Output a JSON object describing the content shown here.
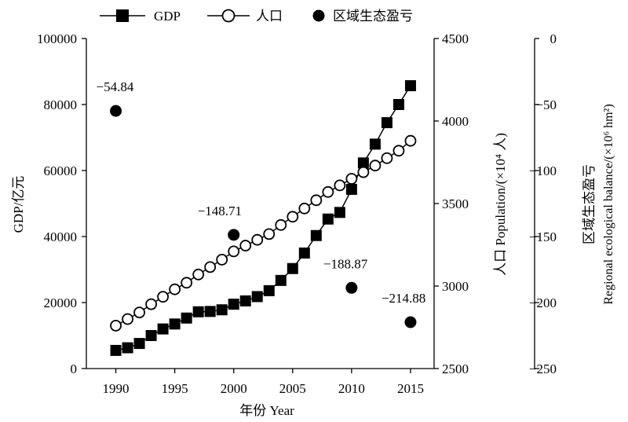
{
  "chart_data": {
    "type": "line",
    "x_axis": {
      "label": "年份 Year",
      "ticks": [
        1990,
        1995,
        2000,
        2005,
        2010,
        2015
      ],
      "range": [
        1987.5,
        2017
      ]
    },
    "y_left": {
      "label": "GDP/亿元",
      "ticks": [
        "0",
        "20000",
        "40000",
        "60000",
        "80000",
        "100000"
      ],
      "range": [
        0,
        100000
      ]
    },
    "y_right": {
      "label": "人口 Population/(×10⁴ 人)",
      "ticks": [
        "2500",
        "3000",
        "3500",
        "4000",
        "4500"
      ],
      "range": [
        2500,
        4500
      ]
    },
    "y_right2": {
      "label_cn": "区域生态盈亏",
      "label_en": "Regional ecological balance/(×10⁶ hm²)",
      "ticks": [
        "0",
        "−50",
        "−100",
        "−150",
        "−200",
        "−250"
      ],
      "range": [
        -250,
        0
      ]
    },
    "legend": [
      "GDP",
      "人口",
      "区域生态盈亏"
    ],
    "series": [
      {
        "name": "GDP",
        "axis": "left",
        "marker": "square",
        "x": [
          1990,
          1991,
          1992,
          1993,
          1994,
          1995,
          1996,
          1997,
          1998,
          1999,
          2000,
          2001,
          2002,
          2003,
          2004,
          2005,
          2006,
          2007,
          2008,
          2009,
          2010,
          2011,
          2012,
          2013,
          2014,
          2015
        ],
        "values": [
          5500,
          6300,
          7600,
          10000,
          12000,
          13500,
          15300,
          17200,
          17300,
          17800,
          19500,
          20500,
          21800,
          23600,
          26700,
          30300,
          35000,
          40300,
          45300,
          47300,
          54300,
          62300,
          68000,
          74500,
          80000,
          85700
        ]
      },
      {
        "name": "人口",
        "axis": "right",
        "marker": "open-circle",
        "x": [
          1990,
          1991,
          1992,
          1993,
          1994,
          1995,
          1996,
          1997,
          1998,
          1999,
          2000,
          2001,
          2002,
          2003,
          2004,
          2005,
          2006,
          2007,
          2008,
          2009,
          2010,
          2011,
          2012,
          2013,
          2014,
          2015
        ],
        "values": [
          2760,
          2800,
          2840,
          2890,
          2935,
          2980,
          3020,
          3070,
          3115,
          3160,
          3210,
          3245,
          3280,
          3315,
          3370,
          3420,
          3470,
          3520,
          3570,
          3610,
          3650,
          3690,
          3730,
          3775,
          3820,
          3880
        ]
      },
      {
        "name": "区域生态盈亏",
        "axis": "right2",
        "marker": "filled-circle",
        "x": [
          1990,
          2000,
          2010,
          2015
        ],
        "values": [
          -54.84,
          -148.71,
          -188.87,
          -214.88
        ],
        "labels": [
          "−54.84",
          "−148.71",
          "−188.87",
          "−214.88"
        ]
      }
    ]
  }
}
